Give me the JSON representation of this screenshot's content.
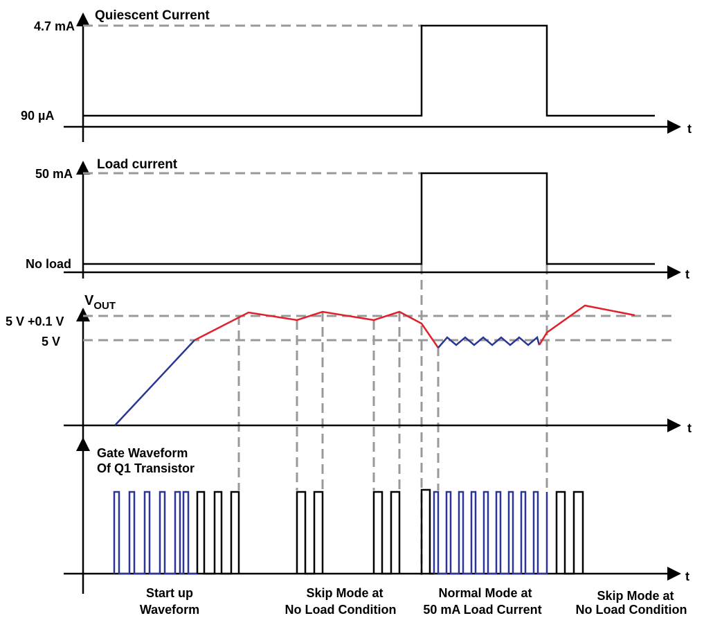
{
  "panels": {
    "quiescent": {
      "title": "Quiescent Current",
      "high_label": "4.7 mA",
      "low_label": "90 µA",
      "t_label": "t"
    },
    "load": {
      "title": "Load current",
      "high_label": "50 mA",
      "low_label": "No load",
      "t_label": "t"
    },
    "vout": {
      "title_main": "V",
      "title_sub": "OUT",
      "high_label": "5 V +0.1 V",
      "low_label": "5 V",
      "t_label": "t"
    },
    "gate": {
      "title_line1": "Gate Waveform",
      "title_line2": "Of Q1 Transistor",
      "t_label": "t"
    }
  },
  "captions": [
    {
      "line1": "Start up",
      "line2": "Waveform"
    },
    {
      "line1": "Skip Mode at",
      "line2": "No Load Condition"
    },
    {
      "line1": "Normal Mode at",
      "line2": "50 mA Load Current"
    },
    {
      "line1": "Skip Mode at",
      "line2": "No Load Condition"
    }
  ],
  "colors": {
    "axis": "#000000",
    "guide": "#999999",
    "red_trace": "#e0202a",
    "blue_trace": "#2b3593",
    "black_trace": "#000000"
  }
}
